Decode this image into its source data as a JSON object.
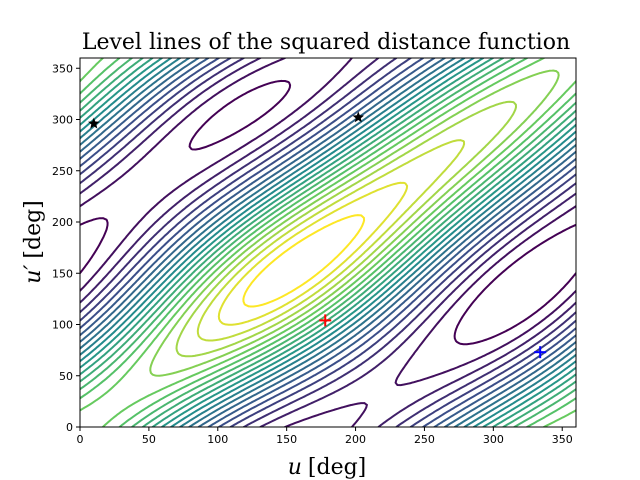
{
  "chart_data": {
    "type": "contour",
    "title": "Level lines of the squared distance function",
    "xlabel_var": "u",
    "xlabel_unit": "[deg]",
    "ylabel_var": "u′",
    "ylabel_unit": "[deg]",
    "xlim": [
      0,
      360
    ],
    "ylim": [
      0,
      360
    ],
    "xticks": [
      "0",
      "50",
      "100",
      "150",
      "200",
      "250",
      "300",
      "350"
    ],
    "yticks": [
      "0",
      "50",
      "100",
      "150",
      "200",
      "250",
      "300",
      "350"
    ],
    "xtick_values": [
      0,
      50,
      100,
      150,
      200,
      250,
      300,
      350
    ],
    "ytick_values": [
      0,
      50,
      100,
      150,
      200,
      250,
      300,
      350
    ],
    "colormap": [
      "#440154",
      "#3b528b",
      "#21918c",
      "#5ec962",
      "#fde725"
    ],
    "grid": false,
    "markers": [
      {
        "kind": "plus",
        "x": 178,
        "y": 104,
        "color": "#ff0000"
      },
      {
        "kind": "plus",
        "x": 334,
        "y": 73,
        "color": "#0000ff"
      },
      {
        "kind": "star",
        "x": 10,
        "y": 296,
        "color": "#000000"
      },
      {
        "kind": "star",
        "x": 202,
        "y": 302,
        "color": "#000000"
      }
    ]
  }
}
